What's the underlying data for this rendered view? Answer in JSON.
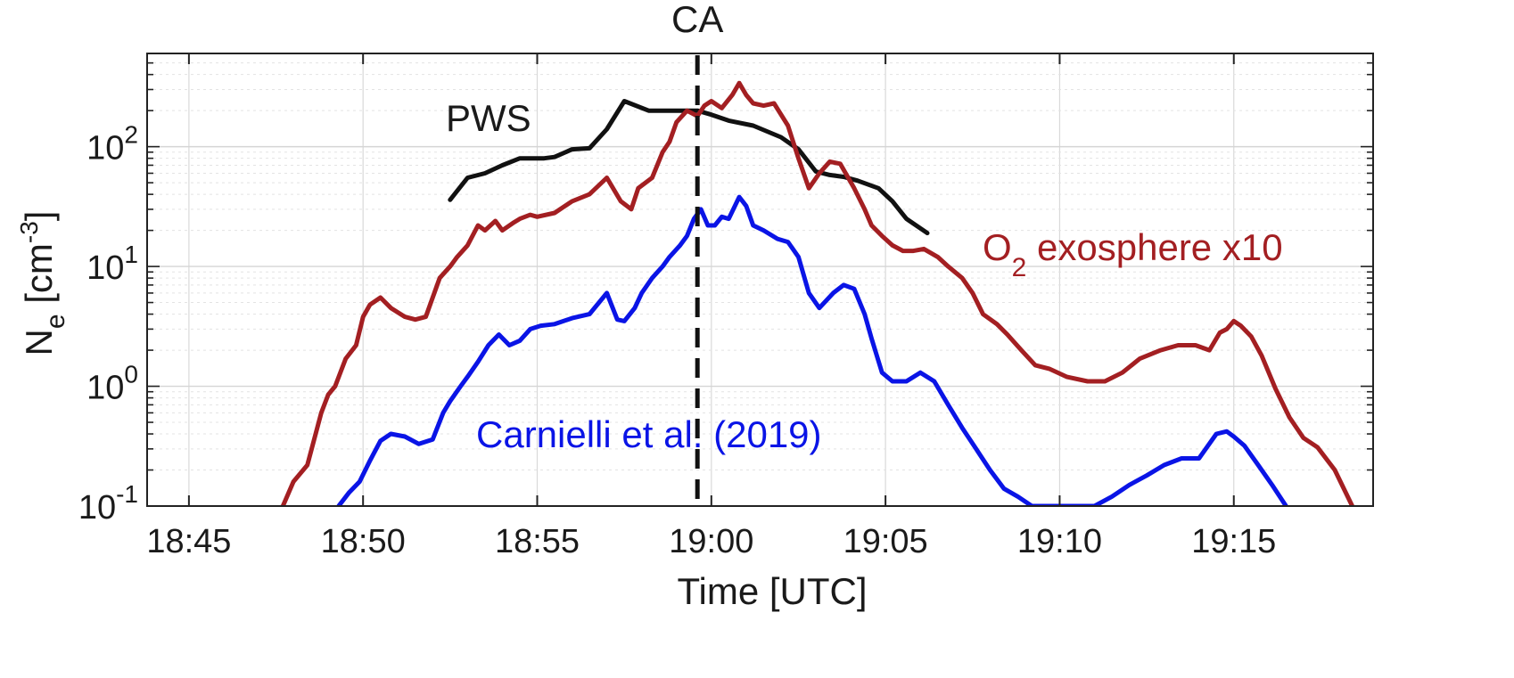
{
  "chart_data": {
    "type": "line",
    "title": "",
    "xlabel": "Time [UTC]",
    "ylabel_main": "N",
    "ylabel_sub": "e",
    "ylabel_unit_prefix": " [cm",
    "ylabel_unit_exp": "-3",
    "ylabel_unit_suffix": "]",
    "x_ticks": [
      "18:45",
      "18:50",
      "18:55",
      "19:00",
      "19:05",
      "19:10",
      "19:15"
    ],
    "x_tick_minutes": [
      -15,
      -10,
      -5,
      0,
      5,
      10,
      15
    ],
    "xlim_minutes_from_1900": [
      -16.2,
      19.0
    ],
    "y_scale": "log",
    "ylim": [
      0.1,
      600
    ],
    "y_ticks": [
      {
        "base": "10",
        "exp": "-1",
        "value": 0.1
      },
      {
        "base": "10",
        "exp": "0",
        "value": 1
      },
      {
        "base": "10",
        "exp": "1",
        "value": 10
      },
      {
        "base": "10",
        "exp": "2",
        "value": 100
      }
    ],
    "grid": true,
    "vline": {
      "label": "CA",
      "x_minutes": -0.4,
      "color": "#111111",
      "style": "dashed"
    },
    "series": [
      {
        "name": "PWS",
        "color": "#111111",
        "x_minutes": [
          -7.5,
          -7.0,
          -6.5,
          -6.0,
          -5.5,
          -4.8,
          -4.5,
          -4.0,
          -3.5,
          -3.0,
          -2.5,
          -1.8,
          -1.0,
          -0.4,
          0.0,
          0.5,
          1.2,
          2.0,
          2.5,
          3.0,
          3.4,
          3.8,
          4.2,
          4.8,
          5.2,
          5.6,
          6.2
        ],
        "values": [
          36,
          55,
          60,
          70,
          80,
          80,
          82,
          95,
          97,
          140,
          240,
          200,
          200,
          200,
          185,
          165,
          150,
          120,
          95,
          62,
          58,
          56,
          52,
          45,
          35,
          25,
          19
        ]
      },
      {
        "name": "O₂ exosphere x10",
        "label_main": "O",
        "label_sub": "2",
        "label_rest": " exosphere x10",
        "color": "#a31f22",
        "x_minutes": [
          -12.3,
          -12.0,
          -11.6,
          -11.2,
          -11.0,
          -10.8,
          -10.5,
          -10.2,
          -10.0,
          -9.8,
          -9.5,
          -9.2,
          -8.8,
          -8.5,
          -8.2,
          -7.8,
          -7.5,
          -7.3,
          -7.0,
          -6.7,
          -6.5,
          -6.2,
          -6.0,
          -5.7,
          -5.5,
          -5.2,
          -5.0,
          -4.5,
          -4.0,
          -3.5,
          -3.0,
          -2.6,
          -2.3,
          -2.1,
          -1.7,
          -1.4,
          -1.2,
          -1.0,
          -0.7,
          -0.4,
          -0.2,
          0.0,
          0.3,
          0.6,
          0.8,
          1.0,
          1.2,
          1.5,
          1.8,
          2.2,
          2.5,
          2.8,
          3.1,
          3.4,
          3.7,
          4.1,
          4.4,
          4.6,
          4.9,
          5.2,
          5.5,
          5.8,
          6.1,
          6.5,
          6.8,
          7.2,
          7.5,
          7.8,
          8.2,
          8.5,
          8.9,
          9.3,
          9.7,
          10.2,
          10.8,
          11.3,
          11.8,
          12.3,
          12.9,
          13.4,
          13.9,
          14.3,
          14.6,
          14.8,
          15.0,
          15.2,
          15.5,
          15.8,
          16.2,
          16.6,
          17.0,
          17.4,
          17.9,
          18.4
        ],
        "values": [
          0.1,
          0.16,
          0.22,
          0.6,
          0.85,
          1.0,
          1.7,
          2.2,
          3.8,
          4.8,
          5.5,
          4.5,
          3.8,
          3.6,
          3.8,
          8.0,
          10.0,
          12.0,
          15.0,
          22,
          20,
          24,
          20,
          23,
          25,
          27,
          26,
          28,
          35,
          40,
          55,
          35,
          30,
          45,
          55,
          90,
          110,
          160,
          200,
          180,
          220,
          240,
          210,
          270,
          340,
          270,
          230,
          220,
          230,
          150,
          80,
          45,
          60,
          75,
          72,
          45,
          30,
          22,
          18,
          15,
          13.5,
          13.5,
          14.0,
          12.0,
          10.0,
          8.0,
          6.0,
          4.0,
          3.3,
          2.7,
          2.0,
          1.5,
          1.4,
          1.2,
          1.1,
          1.1,
          1.3,
          1.7,
          2.0,
          2.2,
          2.2,
          2.0,
          2.8,
          3.0,
          3.5,
          3.2,
          2.6,
          1.8,
          0.95,
          0.55,
          0.37,
          0.31,
          0.2,
          0.1
        ]
      },
      {
        "name": "Carnielli et al. (2019)",
        "color": "#0a14e6",
        "x_minutes": [
          -10.7,
          -10.4,
          -10.1,
          -9.8,
          -9.5,
          -9.2,
          -8.8,
          -8.4,
          -8.0,
          -7.7,
          -7.5,
          -7.2,
          -7.0,
          -6.7,
          -6.4,
          -6.1,
          -5.8,
          -5.5,
          -5.2,
          -4.9,
          -4.5,
          -4.0,
          -3.5,
          -3.0,
          -2.7,
          -2.5,
          -2.2,
          -2.0,
          -1.7,
          -1.4,
          -1.2,
          -0.9,
          -0.7,
          -0.5,
          -0.3,
          -0.1,
          0.1,
          0.3,
          0.5,
          0.8,
          1.0,
          1.2,
          1.5,
          1.9,
          2.2,
          2.5,
          2.8,
          3.1,
          3.5,
          3.8,
          4.1,
          4.4,
          4.6,
          4.9,
          5.2,
          5.6,
          6.0,
          6.4,
          6.8,
          7.2,
          7.6,
          8.0,
          8.4,
          8.8,
          9.2,
          9.6,
          10.0,
          10.5,
          11.0,
          11.5,
          12.0,
          12.5,
          13.0,
          13.5,
          14.0,
          14.5,
          14.8,
          15.0,
          15.3,
          15.7,
          16.1,
          16.5
        ],
        "values": [
          0.1,
          0.13,
          0.16,
          0.24,
          0.35,
          0.4,
          0.38,
          0.33,
          0.36,
          0.6,
          0.75,
          1.0,
          1.2,
          1.6,
          2.2,
          2.7,
          2.2,
          2.4,
          3.0,
          3.2,
          3.3,
          3.7,
          4.0,
          6.0,
          3.6,
          3.5,
          4.5,
          6.0,
          8.0,
          10.0,
          12.0,
          15.0,
          18.0,
          25.0,
          30.0,
          22.0,
          22.0,
          26.0,
          25.0,
          38.0,
          32.0,
          22.0,
          20.0,
          17.0,
          16.0,
          12.0,
          6.0,
          4.5,
          6.0,
          7.0,
          6.5,
          4.0,
          2.5,
          1.3,
          1.1,
          1.1,
          1.3,
          1.1,
          0.7,
          0.45,
          0.3,
          0.2,
          0.14,
          0.12,
          0.1,
          0.1,
          0.1,
          0.1,
          0.1,
          0.12,
          0.15,
          0.18,
          0.22,
          0.25,
          0.25,
          0.4,
          0.42,
          0.38,
          0.32,
          0.22,
          0.15,
          0.1
        ]
      }
    ],
    "annotations": [
      {
        "text": "PWS",
        "series": "PWS"
      },
      {
        "text": "Carnielli et al. (2019)",
        "series": "Carnielli et al. (2019)"
      }
    ]
  }
}
